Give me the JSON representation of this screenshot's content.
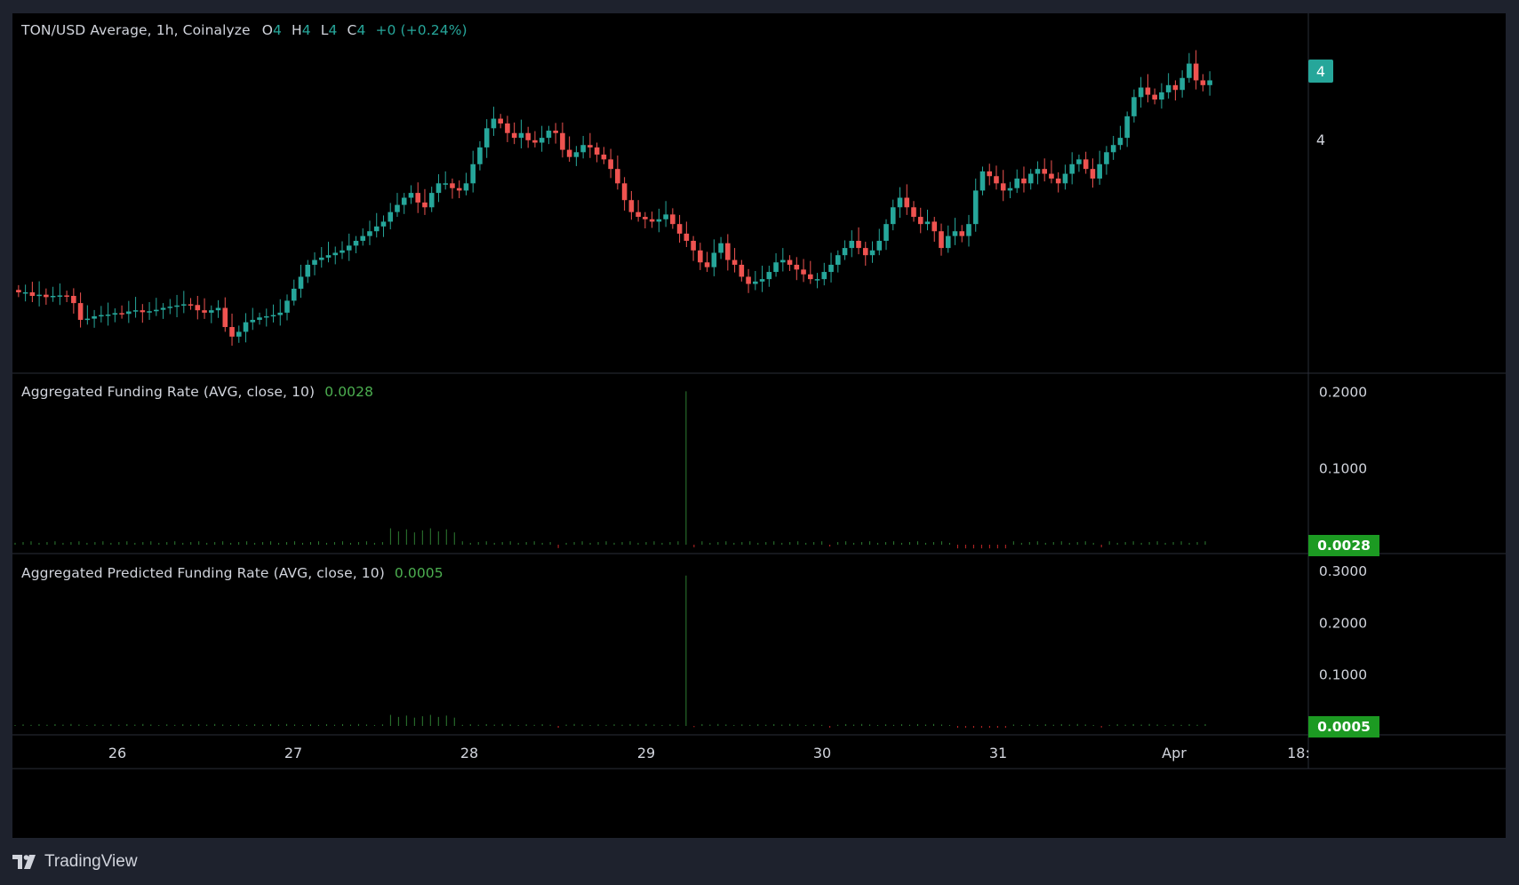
{
  "chart_data": {
    "type": "candlestick",
    "symbol_title": "TON/USD Average, 1h, Coinalyze",
    "ohlc_labels": {
      "open_label": "O",
      "open": "4",
      "high_label": "H",
      "high": "4",
      "low_label": "L",
      "low": "4",
      "close_label": "C",
      "close": "4",
      "change": "+0 (+0.24%)"
    },
    "x_ticks": [
      "26",
      "27",
      "28",
      "29",
      "30",
      "31",
      "Apr",
      "18:"
    ],
    "price_axis": {
      "current_price_label": "4",
      "tick_label": "4"
    },
    "candle_closes_relative": [
      0.665,
      0.665,
      0.65,
      0.655,
      0.645,
      0.65,
      0.652,
      0.65,
      0.62,
      0.55,
      0.555,
      0.565,
      0.57,
      0.572,
      0.578,
      0.575,
      0.585,
      0.59,
      0.582,
      0.586,
      0.592,
      0.6,
      0.605,
      0.61,
      0.615,
      0.612,
      0.59,
      0.58,
      0.59,
      0.6,
      0.52,
      0.48,
      0.5,
      0.54,
      0.55,
      0.56,
      0.565,
      0.57,
      0.58,
      0.63,
      0.68,
      0.73,
      0.78,
      0.8,
      0.81,
      0.82,
      0.83,
      0.84,
      0.86,
      0.88,
      0.9,
      0.92,
      0.94,
      0.96,
      1.0,
      1.03,
      1.06,
      1.08,
      1.04,
      1.02,
      1.08,
      1.12,
      1.12,
      1.1,
      1.09,
      1.12,
      1.2,
      1.27,
      1.35,
      1.39,
      1.37,
      1.33,
      1.31,
      1.33,
      1.3,
      1.29,
      1.31,
      1.34,
      1.33,
      1.26,
      1.23,
      1.25,
      1.28,
      1.27,
      1.24,
      1.22,
      1.18,
      1.12,
      1.05,
      1.0,
      0.98,
      0.97,
      0.96,
      0.97,
      0.99,
      0.95,
      0.91,
      0.88,
      0.84,
      0.79,
      0.77,
      0.83,
      0.87,
      0.8,
      0.78,
      0.73,
      0.7,
      0.71,
      0.72,
      0.75,
      0.79,
      0.8,
      0.78,
      0.76,
      0.74,
      0.72,
      0.72,
      0.75,
      0.78,
      0.82,
      0.85,
      0.88,
      0.85,
      0.82,
      0.84,
      0.88,
      0.95,
      1.02,
      1.06,
      1.02,
      0.98,
      0.95,
      0.96,
      0.92,
      0.85,
      0.9,
      0.92,
      0.9,
      0.95,
      1.09,
      1.17,
      1.15,
      1.12,
      1.09,
      1.1,
      1.14,
      1.12,
      1.16,
      1.18,
      1.16,
      1.14,
      1.12,
      1.16,
      1.2,
      1.22,
      1.18,
      1.14,
      1.2,
      1.25,
      1.28,
      1.31,
      1.4,
      1.48,
      1.52,
      1.49,
      1.47,
      1.5,
      1.53,
      1.51,
      1.56,
      1.62,
      1.55,
      1.53,
      1.55
    ],
    "panes": [
      {
        "title": "Aggregated Funding Rate (AVG, close, 10)",
        "value": "0.0028",
        "y_ticks": [
          "0.2000",
          "0.1000"
        ],
        "current_label": "0.0028",
        "ylim": [
          0,
          0.205
        ],
        "spike_value": 0.2,
        "typical_value": 0.004,
        "peak_region_value": 0.02
      },
      {
        "title": "Aggregated Predicted Funding Rate (AVG, close, 10)",
        "value": "0.0005",
        "y_ticks": [
          "0.3000",
          "0.2000",
          "0.1000"
        ],
        "current_label": "0.0005",
        "ylim": [
          0,
          0.305
        ],
        "spike_value": 0.29,
        "typical_value": 0.003,
        "peak_region_value": 0.02
      }
    ]
  },
  "colors": {
    "up": "#26a69a",
    "down": "#ef5350",
    "funding_up": "#2e7d32",
    "funding_down": "#c62828",
    "label_green": "#1c9a22",
    "label_teal": "#26a69a"
  },
  "branding": {
    "logo_icon": "tradingview-logo-icon",
    "text": "TradingView"
  }
}
